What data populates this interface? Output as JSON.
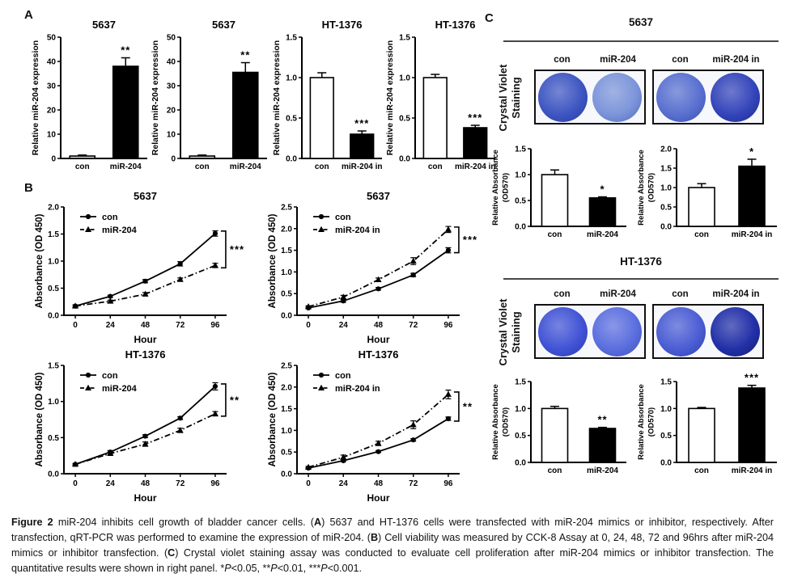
{
  "figure": {
    "panels": {
      "a": "A",
      "b": "B",
      "c": "C"
    }
  },
  "panel_c": {
    "sections": [
      {
        "title": "5637",
        "stain_line1": "Crystal Violet",
        "stain_line2": "Staining",
        "groups": [
          {
            "wells": [
              {
                "label": "con",
                "fill": "#3f57c2",
                "ring": "#2a3da4"
              },
              {
                "label": "miR-204",
                "fill": "#7d95da",
                "ring": "#5570c2"
              }
            ]
          },
          {
            "wells": [
              {
                "label": "con",
                "fill": "#5a71d0",
                "ring": "#3c53b6"
              },
              {
                "label": "miR-204 in",
                "fill": "#3546ba",
                "ring": "#1f2d96"
              }
            ]
          }
        ]
      },
      {
        "title": "HT-1376",
        "stain_line1": "Crystal Violet",
        "stain_line2": "Staining",
        "groups": [
          {
            "wells": [
              {
                "label": "con",
                "fill": "#4254d6",
                "ring": "#2c3eb2"
              },
              {
                "label": "miR-204",
                "fill": "#5c6fdf",
                "ring": "#4254c0"
              }
            ]
          },
          {
            "wells": [
              {
                "label": "con",
                "fill": "#4c5ed4",
                "ring": "#3344b4"
              },
              {
                "label": "miR-204 in",
                "fill": "#2331a8",
                "ring": "#141f7a"
              }
            ]
          }
        ]
      }
    ]
  },
  "chart_data": [
    {
      "id": "A1",
      "type": "bar",
      "title": "5637",
      "ylabel": [
        "Relative miR-204 expression"
      ],
      "ylim": [
        0,
        50
      ],
      "yticks": [
        0,
        10,
        20,
        30,
        40,
        50
      ],
      "ydec": 0,
      "categories": [
        "con",
        "miR-204"
      ],
      "values": [
        1,
        38
      ],
      "errors": [
        0.4,
        3.5
      ],
      "fills": [
        "#d8d8d8",
        "#000000"
      ],
      "sig": [
        "",
        "**"
      ]
    },
    {
      "id": "A2",
      "type": "bar",
      "title": "5637",
      "ylabel": [
        "Relative miR-204 expression"
      ],
      "ylim": [
        0,
        50
      ],
      "yticks": [
        0,
        10,
        20,
        30,
        40,
        50
      ],
      "ydec": 0,
      "categories": [
        "con",
        "miR-204"
      ],
      "values": [
        1,
        35.5
      ],
      "errors": [
        0.4,
        4
      ],
      "fills": [
        "#d8d8d8",
        "#000000"
      ],
      "sig": [
        "",
        "**"
      ]
    },
    {
      "id": "A3",
      "type": "bar",
      "title": "HT-1376",
      "ylabel": [
        "Relative miR-204 expression"
      ],
      "ylim": [
        0,
        1.5
      ],
      "yticks": [
        0,
        0.5,
        1.0,
        1.5
      ],
      "ydec": 1,
      "categories": [
        "con",
        "miR-204 in"
      ],
      "values": [
        1.0,
        0.3
      ],
      "errors": [
        0.06,
        0.04
      ],
      "fills": [
        "#ffffff",
        "#000000"
      ],
      "sig": [
        "",
        "***"
      ]
    },
    {
      "id": "A4",
      "type": "bar",
      "title": "HT-1376",
      "ylabel": [
        "Relative miR-204 expression"
      ],
      "ylim": [
        0,
        1.5
      ],
      "yticks": [
        0,
        0.5,
        1.0,
        1.5
      ],
      "ydec": 1,
      "categories": [
        "con",
        "miR-204 in"
      ],
      "values": [
        1.0,
        0.38
      ],
      "errors": [
        0.04,
        0.03
      ],
      "fills": [
        "#ffffff",
        "#000000"
      ],
      "sig": [
        "",
        "***"
      ]
    },
    {
      "id": "B1",
      "type": "line",
      "title": "5637",
      "ylabel": [
        "Absorbance (OD 450)"
      ],
      "xlabel": "Hour",
      "ylim": [
        0,
        2.0
      ],
      "yticks": [
        0,
        0.5,
        1.0,
        1.5,
        2.0
      ],
      "ydec": 1,
      "x": [
        0,
        24,
        48,
        72,
        96
      ],
      "sig": "***",
      "series": [
        {
          "name": "con",
          "marker": "circle",
          "dash": "solid",
          "values": [
            0.17,
            0.35,
            0.63,
            0.95,
            1.51
          ],
          "errors": [
            0.02,
            0.02,
            0.03,
            0.04,
            0.05
          ]
        },
        {
          "name": "miR-204",
          "marker": "triangle",
          "dash": "dashdot",
          "values": [
            0.17,
            0.26,
            0.39,
            0.66,
            0.92
          ],
          "errors": [
            0.02,
            0.02,
            0.03,
            0.03,
            0.04
          ]
        }
      ]
    },
    {
      "id": "B2",
      "type": "line",
      "title": "5637",
      "ylabel": [
        "Absorbance (OD 450)"
      ],
      "xlabel": "Hour",
      "ylim": [
        0,
        2.5
      ],
      "yticks": [
        0,
        0.5,
        1.0,
        1.5,
        2.0,
        2.5
      ],
      "ydec": 1,
      "x": [
        0,
        24,
        48,
        72,
        96
      ],
      "sig": "***",
      "series": [
        {
          "name": "con",
          "marker": "circle",
          "dash": "solid",
          "values": [
            0.17,
            0.33,
            0.61,
            0.93,
            1.5
          ],
          "errors": [
            0.02,
            0.03,
            0.03,
            0.04,
            0.06
          ]
        },
        {
          "name": "miR-204 in",
          "marker": "triangle",
          "dash": "dashdot",
          "values": [
            0.2,
            0.42,
            0.82,
            1.25,
            1.98
          ],
          "errors": [
            0.02,
            0.04,
            0.04,
            0.08,
            0.07
          ]
        }
      ]
    },
    {
      "id": "B3",
      "type": "line",
      "title": "HT-1376",
      "ylabel": [
        "Absorbance (OD 450)"
      ],
      "xlabel": "Hour",
      "ylim": [
        0,
        1.5
      ],
      "yticks": [
        0,
        0.5,
        1.0,
        1.5
      ],
      "ydec": 1,
      "x": [
        0,
        24,
        48,
        72,
        96
      ],
      "sig": "**",
      "series": [
        {
          "name": "con",
          "marker": "circle",
          "dash": "solid",
          "values": [
            0.13,
            0.3,
            0.52,
            0.77,
            1.21
          ],
          "errors": [
            0.01,
            0.02,
            0.02,
            0.02,
            0.05
          ]
        },
        {
          "name": "miR-204",
          "marker": "triangle",
          "dash": "dashdot",
          "values": [
            0.13,
            0.28,
            0.41,
            0.6,
            0.83
          ],
          "errors": [
            0.01,
            0.02,
            0.03,
            0.03,
            0.03
          ]
        }
      ]
    },
    {
      "id": "B4",
      "type": "line",
      "title": "HT-1376",
      "ylabel": [
        "Absorbance (OD 450)"
      ],
      "xlabel": "Hour",
      "ylim": [
        0,
        2.5
      ],
      "yticks": [
        0,
        0.5,
        1.0,
        1.5,
        2.0,
        2.5
      ],
      "ydec": 1,
      "x": [
        0,
        24,
        48,
        72,
        96
      ],
      "sig": "**",
      "series": [
        {
          "name": "con",
          "marker": "circle",
          "dash": "solid",
          "values": [
            0.13,
            0.3,
            0.51,
            0.78,
            1.27
          ],
          "errors": [
            0.01,
            0.02,
            0.02,
            0.03,
            0.04
          ]
        },
        {
          "name": "miR-204 in",
          "marker": "triangle",
          "dash": "dashdot",
          "values": [
            0.15,
            0.38,
            0.7,
            1.13,
            1.83
          ],
          "errors": [
            0.02,
            0.05,
            0.05,
            0.09,
            0.1
          ]
        }
      ]
    },
    {
      "id": "C1",
      "type": "bar",
      "title": "",
      "ylabel": [
        "Relative Absorbance",
        "(OD570)"
      ],
      "ylim": [
        0,
        1.5
      ],
      "yticks": [
        0,
        0.5,
        1.0,
        1.5
      ],
      "ydec": 1,
      "categories": [
        "con",
        "miR-204"
      ],
      "values": [
        1.0,
        0.55
      ],
      "errors": [
        0.09,
        0.02
      ],
      "fills": [
        "#ffffff",
        "#000000"
      ],
      "sig": [
        "",
        "*"
      ]
    },
    {
      "id": "C2",
      "type": "bar",
      "title": "",
      "ylabel": [
        "Relative Absorbance",
        "(OD570)"
      ],
      "ylim": [
        0,
        2.0
      ],
      "yticks": [
        0,
        0.5,
        1.0,
        1.5,
        2.0
      ],
      "ydec": 1,
      "categories": [
        "con",
        "miR-204 in"
      ],
      "values": [
        1.0,
        1.55
      ],
      "errors": [
        0.1,
        0.18
      ],
      "fills": [
        "#ffffff",
        "#000000"
      ],
      "sig": [
        "",
        "*"
      ]
    },
    {
      "id": "C3",
      "type": "bar",
      "title": "",
      "ylabel": [
        "Relative Absorbance",
        "(OD570)"
      ],
      "ylim": [
        0,
        1.5
      ],
      "yticks": [
        0,
        0.5,
        1.0,
        1.5
      ],
      "ydec": 1,
      "categories": [
        "con",
        "miR-204"
      ],
      "values": [
        1.0,
        0.63
      ],
      "errors": [
        0.04,
        0.02
      ],
      "fills": [
        "#ffffff",
        "#000000"
      ],
      "sig": [
        "",
        "**"
      ]
    },
    {
      "id": "C4",
      "type": "bar",
      "title": "",
      "ylabel": [
        "Relative Absorbance",
        "(OD570)"
      ],
      "ylim": [
        0,
        1.5
      ],
      "yticks": [
        0,
        0.5,
        1.0,
        1.5
      ],
      "ydec": 1,
      "categories": [
        "con",
        "miR-204 in"
      ],
      "values": [
        1.0,
        1.38
      ],
      "errors": [
        0.02,
        0.05
      ],
      "fills": [
        "#ffffff",
        "#000000"
      ],
      "sig": [
        "",
        "***"
      ]
    }
  ],
  "caption": {
    "segments": [
      {
        "t": "Figure 2",
        "b": 1
      },
      {
        "t": " miR-204 inhibits cell growth of bladder cancer cells. ("
      },
      {
        "t": "A",
        "b": 1
      },
      {
        "t": ") 5637 and HT-1376 cells were transfected with miR-204 mimics or inhibitor, respectively. After transfection, qRT-PCR was performed to examine the expression of miR-204. ("
      },
      {
        "t": "B",
        "b": 1
      },
      {
        "t": ") Cell viability was measured by CCK-8 Assay at 0, 24, 48, 72 and 96hrs after miR-204 mimics or inhibitor transfection. ("
      },
      {
        "t": "C",
        "b": 1
      },
      {
        "t": ") Crystal violet staining assay was conducted to evaluate cell proliferation after miR-204 mimics or inhibitor transfection. The quantitative results were shown in right panel. *"
      },
      {
        "t": "P",
        "i": 1
      },
      {
        "t": "<0.05, **"
      },
      {
        "t": "P",
        "i": 1
      },
      {
        "t": "<0.01, ***"
      },
      {
        "t": "P",
        "i": 1
      },
      {
        "t": "<0.001."
      }
    ]
  }
}
